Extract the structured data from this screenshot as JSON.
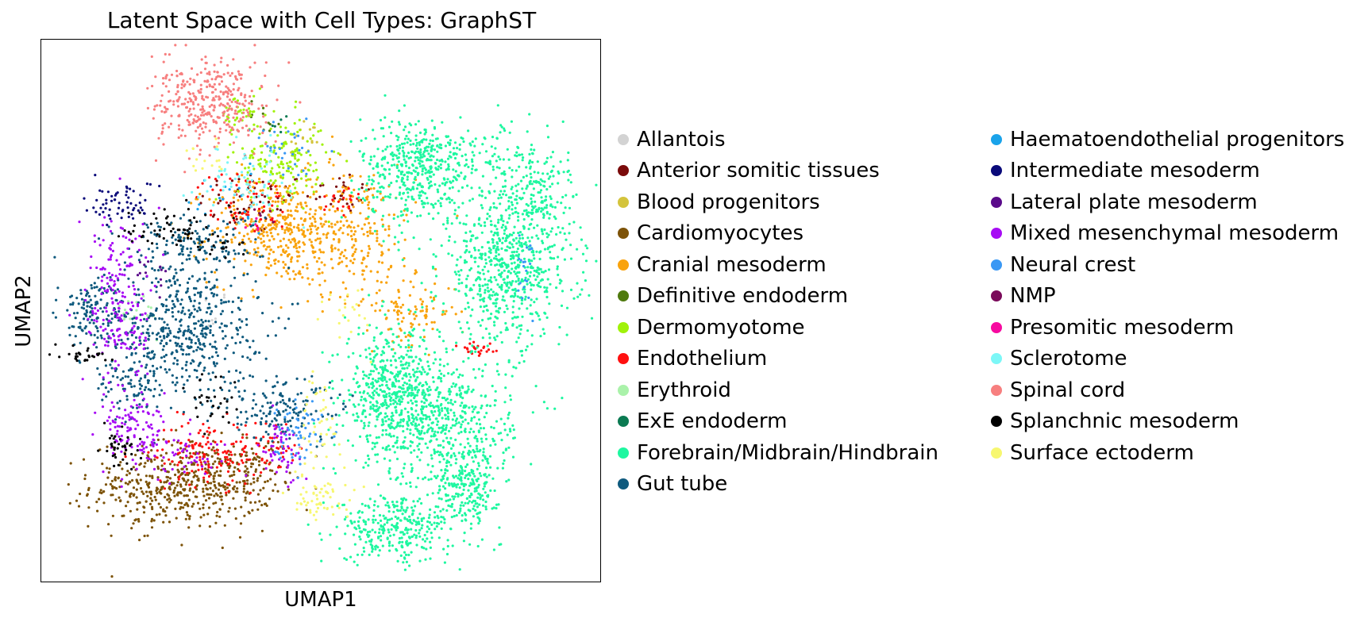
{
  "chart_data": {
    "type": "scatter",
    "title": "Latent Space with Cell Types: GraphST",
    "xlabel": "UMAP1",
    "ylabel": "UMAP2",
    "xticks": [],
    "yticks": [],
    "grid": false,
    "legend_placement": "right, outside plot, two columns",
    "xlim": [
      0,
      100
    ],
    "ylim": [
      0,
      100
    ],
    "series": [
      {
        "name": "Allantois",
        "color": "#d3d3d3",
        "clusters": [
          [
            30,
            50,
            2,
            2,
            10
          ]
        ]
      },
      {
        "name": "Anterior somitic tissues",
        "color": "#7a0a0a",
        "clusters": [
          [
            38,
            70,
            5,
            3,
            60
          ],
          [
            53,
            72,
            3,
            2,
            30
          ]
        ]
      },
      {
        "name": "Blood progenitors",
        "color": "#d4c43c",
        "clusters": [
          [
            47,
            82,
            2,
            2,
            15
          ]
        ]
      },
      {
        "name": "Cardiomyocytes",
        "color": "#7d5308",
        "clusters": [
          [
            25,
            18,
            8,
            4,
            500
          ],
          [
            37,
            20,
            3,
            3,
            70
          ]
        ]
      },
      {
        "name": "Cranial mesoderm",
        "color": "#f9a30d",
        "clusters": [
          [
            42,
            65,
            6,
            5,
            350
          ],
          [
            55,
            65,
            6,
            6,
            250
          ],
          [
            66,
            50,
            4,
            3,
            100
          ]
        ]
      },
      {
        "name": "Definitive endoderm",
        "color": "#4f7a0e",
        "clusters": [
          [
            40,
            85,
            2,
            2,
            10
          ]
        ]
      },
      {
        "name": "Dermomyotome",
        "color": "#a0f20a",
        "clusters": [
          [
            43,
            78,
            4,
            4,
            160
          ],
          [
            36,
            86,
            2,
            2,
            40
          ]
        ]
      },
      {
        "name": "Endothelium",
        "color": "#ff1010",
        "clusters": [
          [
            30,
            24,
            5,
            3,
            140
          ],
          [
            36,
            70,
            4,
            3,
            60
          ],
          [
            42,
            26,
            2,
            2,
            30
          ],
          [
            78,
            43,
            2,
            1,
            25
          ],
          [
            53,
            70,
            2,
            2,
            20
          ]
        ]
      },
      {
        "name": "Erythroid",
        "color": "#aaf2aa",
        "clusters": [
          [
            18,
            50,
            2,
            2,
            15
          ]
        ]
      },
      {
        "name": "ExE endoderm",
        "color": "#0b7a52",
        "clusters": [
          [
            43,
            85,
            1,
            1,
            5
          ]
        ]
      },
      {
        "name": "Forebrain/Midbrain/Hindbrain",
        "color": "#1ef7a0",
        "clusters": [
          [
            67,
            76,
            5,
            5,
            400
          ],
          [
            83,
            58,
            6,
            7,
            700
          ],
          [
            62,
            35,
            4,
            6,
            500
          ],
          [
            72,
            30,
            6,
            6,
            500
          ],
          [
            63,
            10,
            5,
            3,
            300
          ],
          [
            76,
            18,
            3,
            4,
            250
          ],
          [
            75,
            78,
            9,
            3,
            150
          ],
          [
            88,
            72,
            3,
            5,
            150
          ]
        ]
      },
      {
        "name": "Gut tube",
        "color": "#0f5a7e",
        "clusters": [
          [
            25,
            47,
            7,
            6,
            500
          ],
          [
            9,
            50,
            3,
            3,
            120
          ],
          [
            27,
            62,
            6,
            3,
            150
          ],
          [
            43,
            32,
            6,
            3,
            150
          ],
          [
            16,
            36,
            3,
            3,
            80
          ]
        ]
      },
      {
        "name": "Haematoendothelial progenitors",
        "color": "#1aa3ea",
        "clusters": [
          [
            33,
            70,
            3,
            3,
            20
          ]
        ]
      },
      {
        "name": "Intermediate mesoderm",
        "color": "#0a0a7a",
        "clusters": [
          [
            14,
            70,
            3,
            2,
            60
          ]
        ]
      },
      {
        "name": "Lateral plate mesoderm",
        "color": "#5a0a8a",
        "clusters": [
          [
            20,
            57,
            2,
            2,
            12
          ]
        ]
      },
      {
        "name": "Mixed mesenchymal mesoderm",
        "color": "#a70cf4",
        "clusters": [
          [
            14,
            52,
            3,
            8,
            200
          ],
          [
            17,
            28,
            3,
            4,
            120
          ],
          [
            43,
            24,
            2,
            3,
            50
          ],
          [
            26,
            24,
            4,
            2,
            40
          ]
        ]
      },
      {
        "name": "Neural crest",
        "color": "#3a98f4",
        "clusters": [
          [
            46,
            28,
            2,
            3,
            60
          ],
          [
            44,
            80,
            3,
            3,
            30
          ],
          [
            86,
            58,
            1,
            4,
            20
          ]
        ]
      },
      {
        "name": "NMP",
        "color": "#7a0a5a",
        "clusters": [
          [
            40,
            68,
            1,
            1,
            5
          ]
        ]
      },
      {
        "name": "Presomitic mesoderm",
        "color": "#f70aa0",
        "clusters": [
          [
            38,
            66,
            1,
            1,
            5
          ]
        ]
      },
      {
        "name": "Sclerotome",
        "color": "#7cf7f7",
        "clusters": [
          [
            36,
            74,
            4,
            3,
            70
          ]
        ]
      },
      {
        "name": "Spinal cord",
        "color": "#f77f7f",
        "clusters": [
          [
            30,
            88,
            5,
            4,
            350
          ]
        ]
      },
      {
        "name": "Splanchnic mesoderm",
        "color": "#000000",
        "clusters": [
          [
            23,
            66,
            4,
            2,
            60
          ],
          [
            8,
            42,
            2,
            1,
            30
          ],
          [
            14,
            25,
            2,
            2,
            40
          ],
          [
            31,
            34,
            2,
            2,
            30
          ],
          [
            32,
            62,
            2,
            2,
            20
          ]
        ]
      },
      {
        "name": "Surface ectoderm",
        "color": "#f7f770",
        "clusters": [
          [
            50,
            16,
            3,
            2,
            60
          ],
          [
            49,
            30,
            2,
            5,
            40
          ],
          [
            55,
            50,
            2,
            3,
            20
          ],
          [
            30,
            78,
            2,
            2,
            15
          ]
        ]
      }
    ]
  }
}
